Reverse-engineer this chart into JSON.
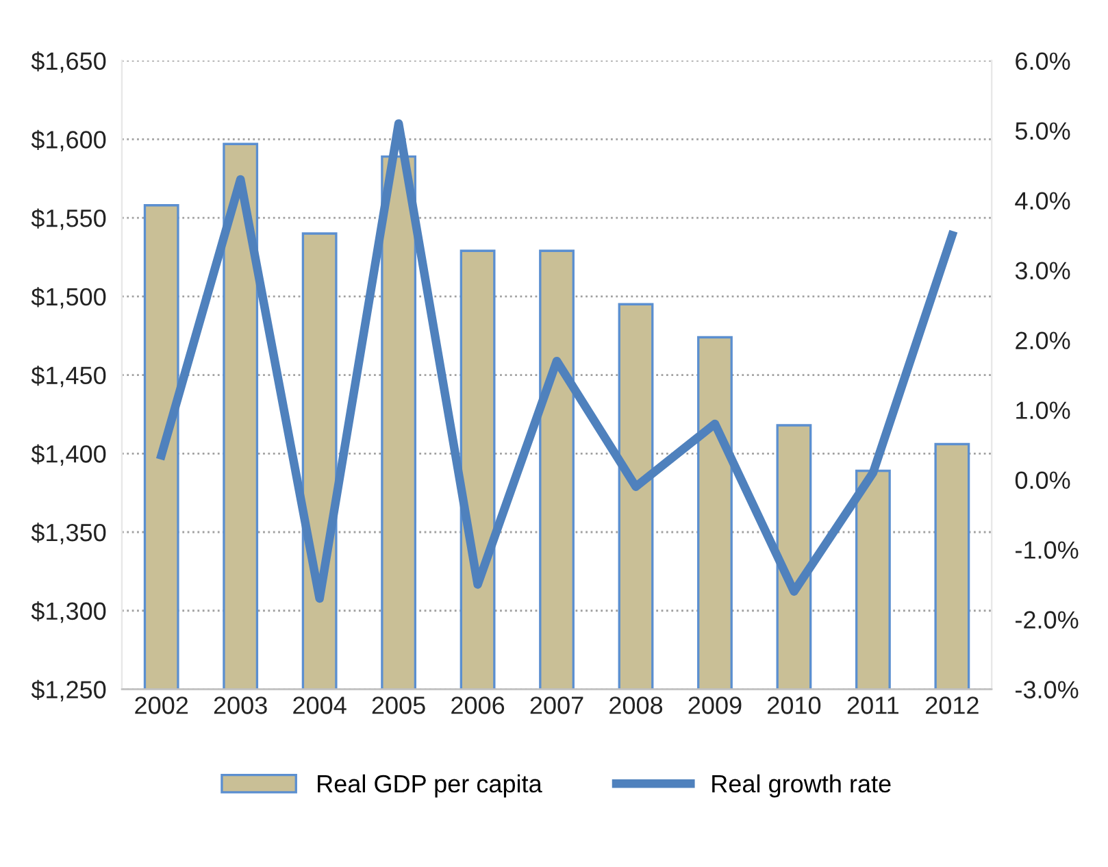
{
  "chart_data": {
    "type": "bar",
    "categories": [
      "2002",
      "2003",
      "2004",
      "2005",
      "2006",
      "2007",
      "2008",
      "2009",
      "2010",
      "2011",
      "2012"
    ],
    "series": [
      {
        "name": "Real GDP per capita",
        "color": "#c9bf96",
        "values": [
          1558,
          1597,
          1540,
          1589,
          1529,
          1529,
          1495,
          1474,
          1418,
          1389,
          1406
        ]
      },
      {
        "name": "Real growth rate",
        "type": "line",
        "axis": "y2",
        "color": "#4f81bd",
        "values": [
          0.35,
          4.3,
          -1.7,
          5.1,
          -1.5,
          1.7,
          -0.1,
          0.8,
          -1.6,
          0.1,
          3.5
        ]
      }
    ],
    "ylim": [
      1250,
      1650
    ],
    "yticks": [
      {
        "value": 1250,
        "label": "$1,250"
      },
      {
        "value": 1300,
        "label": "$1,300"
      },
      {
        "value": 1350,
        "label": "$1,350"
      },
      {
        "value": 1400,
        "label": "$1,400"
      },
      {
        "value": 1450,
        "label": "$1,450"
      },
      {
        "value": 1500,
        "label": "$1,500"
      },
      {
        "value": 1550,
        "label": "$1,550"
      },
      {
        "value": 1600,
        "label": "$1,600"
      },
      {
        "value": 1650,
        "label": "$1,650"
      }
    ],
    "y2lim": [
      -3,
      6
    ],
    "y2ticks": [
      {
        "value": -3,
        "label": "-3.0%"
      },
      {
        "value": -2,
        "label": "-2.0%"
      },
      {
        "value": -1,
        "label": "-1.0%"
      },
      {
        "value": 0,
        "label": "0.0%"
      },
      {
        "value": 1,
        "label": "1.0%"
      },
      {
        "value": 2,
        "label": "2.0%"
      },
      {
        "value": 3,
        "label": "3.0%"
      },
      {
        "value": 4,
        "label": "4.0%"
      },
      {
        "value": 5,
        "label": "5.0%"
      },
      {
        "value": 6,
        "label": "6.0%"
      }
    ],
    "grid": "y",
    "legend": "bottom",
    "marker": "none",
    "line_style": "solid"
  }
}
